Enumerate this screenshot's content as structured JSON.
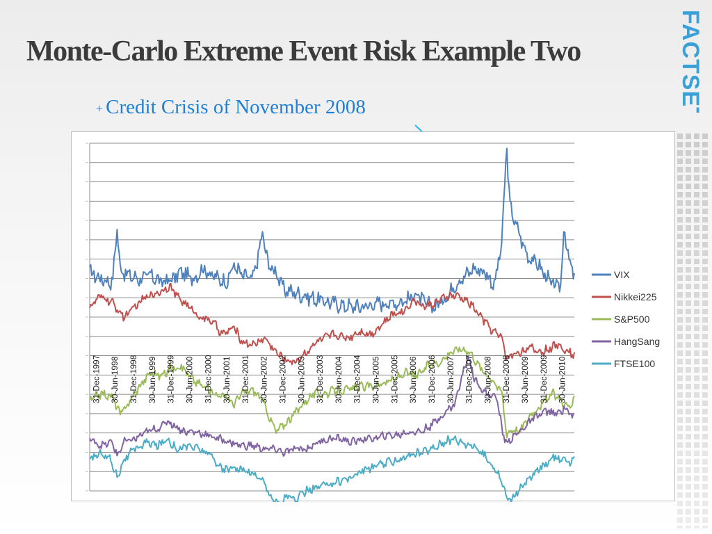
{
  "slide": {
    "title": "Monte-Carlo Extreme Event Risk Example Two",
    "logo_text": "FACTSET",
    "callout_text": "Credit Crisis of November 2008",
    "callout_marker": "+"
  },
  "colors": {
    "title": "#3b3b3b",
    "callout": "#1e7fd6",
    "arrow": "#29b6f6",
    "logo": "#3aa0d6",
    "VIX": "#4f81bd",
    "Nikkei225": "#c0504d",
    "S&P500": "#9bbb59",
    "HangSang": "#8064a2",
    "FTSE100": "#4bacc6"
  },
  "chart_data": {
    "type": "line",
    "title": "",
    "xlabel": "",
    "ylabel": "",
    "grid": true,
    "legend_position": "right",
    "y_tick_labels_visible": false,
    "x_tick_labels": [
      "31-Dec-1997",
      "30-Jun-1998",
      "31-Dec-1998",
      "30-Jun-1999",
      "31-Dec-1999",
      "30-Jun-2000",
      "31-Dec-2000",
      "30-Jun-2001",
      "31-Dec-2001",
      "30-Jun-2002",
      "31-Dec-2002",
      "30-Jun-2003",
      "31-Dec-2003",
      "30-Jun-2004",
      "31-Dec-2004",
      "30-Jun-2005",
      "31-Dec-2005",
      "30-Jun-2006",
      "31-Dec-2006",
      "30-Jun-2007",
      "31-Dec-2007",
      "30-Jun-2008",
      "31-Dec-2008",
      "30-Jun-2009",
      "31-Dec-2009",
      "30-Jun-2010"
    ],
    "x_range": [
      1997.9,
      2010.65
    ],
    "ylim": [
      0,
      100
    ],
    "annotation": {
      "label": "Credit Crisis of November 2008",
      "x": 2008.87,
      "y": 83
    },
    "series": [
      {
        "name": "VIX",
        "x": [
          1997.9,
          1998.2,
          1998.5,
          1998.62,
          1998.7,
          1998.9,
          1999.2,
          1999.5,
          1999.8,
          2000.1,
          2000.3,
          2000.6,
          2000.9,
          2001.1,
          2001.5,
          2001.7,
          2001.9,
          2002.2,
          2002.45,
          2002.6,
          2002.8,
          2003.0,
          2003.3,
          2003.6,
          2003.9,
          2004.3,
          2004.7,
          2005.1,
          2005.5,
          2005.9,
          2006.3,
          2006.45,
          2006.7,
          2007.0,
          2007.3,
          2007.55,
          2007.8,
          2008.0,
          2008.3,
          2008.55,
          2008.75,
          2008.87,
          2008.95,
          2009.1,
          2009.4,
          2009.7,
          2009.95,
          2010.1,
          2010.3,
          2010.38,
          2010.5,
          2010.65
        ],
        "y": [
          63,
          61,
          60,
          76,
          64,
          62,
          61,
          62,
          60,
          61,
          63,
          61,
          64,
          62,
          60,
          65,
          62,
          61,
          74,
          65,
          63,
          58,
          57,
          56,
          55,
          54,
          53,
          53,
          54,
          54,
          55,
          57,
          54,
          53,
          56,
          60,
          62,
          64,
          63,
          59,
          72,
          100,
          82,
          77,
          68,
          65,
          61,
          59,
          59,
          77,
          66,
          62
        ]
      },
      {
        "name": "Nikkei225",
        "x": [
          1997.9,
          1998.2,
          1998.5,
          1998.8,
          1999.1,
          1999.4,
          1999.7,
          2000.0,
          2000.2,
          2000.5,
          2000.8,
          2001.1,
          2001.4,
          2001.7,
          2001.9,
          2002.2,
          2002.5,
          2002.8,
          2003.0,
          2003.3,
          2003.6,
          2003.9,
          2004.3,
          2004.7,
          2005.0,
          2005.3,
          2005.6,
          2005.9,
          2006.2,
          2006.4,
          2006.7,
          2007.0,
          2007.3,
          2007.6,
          2007.9,
          2008.2,
          2008.5,
          2008.75,
          2008.87,
          2009.0,
          2009.2,
          2009.5,
          2009.8,
          2010.0,
          2010.2,
          2010.4,
          2010.65
        ],
        "y": [
          53,
          56,
          54,
          50,
          53,
          56,
          57,
          59,
          56,
          53,
          50,
          49,
          45,
          47,
          43,
          42,
          44,
          40,
          38,
          37,
          40,
          43,
          45,
          44,
          46,
          45,
          48,
          51,
          52,
          55,
          53,
          54,
          56,
          56,
          54,
          50,
          46,
          44,
          38,
          39,
          40,
          41,
          40,
          41,
          42,
          41,
          39
        ]
      },
      {
        "name": "S&P500",
        "x": [
          1997.9,
          1998.2,
          1998.5,
          1998.7,
          1998.9,
          1999.2,
          1999.5,
          1999.8,
          2000.0,
          2000.3,
          2000.6,
          2000.9,
          2001.2,
          2001.5,
          2001.7,
          2001.9,
          2002.2,
          2002.45,
          2002.6,
          2002.8,
          2003.0,
          2003.2,
          2003.5,
          2003.8,
          2004.1,
          2004.4,
          2004.7,
          2005.0,
          2005.3,
          2005.6,
          2005.9,
          2006.2,
          2006.5,
          2006.8,
          2007.1,
          2007.4,
          2007.7,
          2007.9,
          2008.2,
          2008.5,
          2008.75,
          2008.87,
          2009.0,
          2009.2,
          2009.5,
          2009.8,
          2010.1,
          2010.3,
          2010.5,
          2010.65
        ],
        "y": [
          26,
          28,
          27,
          22,
          25,
          30,
          34,
          33,
          35,
          36,
          32,
          30,
          28,
          27,
          25,
          28,
          29,
          26,
          22,
          17,
          19,
          21,
          25,
          28,
          28,
          29,
          29,
          30,
          30,
          31,
          32,
          34,
          33,
          36,
          37,
          40,
          41,
          40,
          35,
          32,
          28,
          16,
          18,
          17,
          22,
          25,
          28,
          26,
          24,
          26
        ]
      },
      {
        "name": "HangSang",
        "x": [
          1997.9,
          1998.2,
          1998.5,
          1998.62,
          1998.8,
          1999.1,
          1999.4,
          1999.7,
          1999.95,
          2000.1,
          2000.4,
          2000.7,
          2001.0,
          2001.3,
          2001.6,
          2001.9,
          2002.2,
          2002.5,
          2002.8,
          2003.0,
          2003.3,
          2003.6,
          2003.9,
          2004.2,
          2004.5,
          2004.8,
          2005.1,
          2005.4,
          2005.7,
          2006.0,
          2006.3,
          2006.6,
          2006.9,
          2007.2,
          2007.5,
          2007.75,
          2007.85,
          2008.0,
          2008.3,
          2008.6,
          2008.82,
          2009.0,
          2009.3,
          2009.6,
          2009.9,
          2010.2,
          2010.4,
          2010.65
        ],
        "y": [
          15,
          13,
          14,
          10,
          14,
          15,
          17,
          18,
          20,
          19,
          17,
          17,
          16,
          15,
          14,
          13,
          13,
          12,
          12,
          11,
          12,
          12,
          14,
          15,
          15,
          14,
          15,
          15,
          16,
          16,
          17,
          17,
          19,
          22,
          25,
          35,
          39,
          33,
          28,
          27,
          14,
          15,
          18,
          21,
          23,
          22,
          24,
          21
        ]
      },
      {
        "name": "FTSE100",
        "x": [
          1997.9,
          1998.2,
          1998.45,
          1998.62,
          1998.8,
          1999.1,
          1999.4,
          1999.7,
          1999.95,
          2000.2,
          2000.5,
          2000.8,
          2001.1,
          2001.4,
          2001.7,
          2001.9,
          2002.2,
          2002.45,
          2002.7,
          2002.9,
          2003.1,
          2003.3,
          2003.6,
          2003.9,
          2004.2,
          2004.5,
          2004.8,
          2005.1,
          2005.4,
          2005.7,
          2006.0,
          2006.3,
          2006.6,
          2006.9,
          2007.2,
          2007.5,
          2007.7,
          2008.0,
          2008.3,
          2008.6,
          2008.8,
          2008.9,
          2009.2,
          2009.5,
          2009.8,
          2010.1,
          2010.3,
          2010.5,
          2010.65
        ],
        "y": [
          9,
          11,
          9,
          4,
          9,
          12,
          14,
          13,
          15,
          12,
          13,
          12,
          10,
          6,
          7,
          6,
          5,
          3,
          -2,
          -4,
          -1,
          -3,
          0,
          1,
          2,
          3,
          4,
          6,
          7,
          8,
          9,
          10,
          11,
          12,
          14,
          15,
          14,
          13,
          10,
          6,
          1,
          -3,
          0,
          4,
          7,
          10,
          9,
          8,
          9
        ]
      }
    ]
  }
}
